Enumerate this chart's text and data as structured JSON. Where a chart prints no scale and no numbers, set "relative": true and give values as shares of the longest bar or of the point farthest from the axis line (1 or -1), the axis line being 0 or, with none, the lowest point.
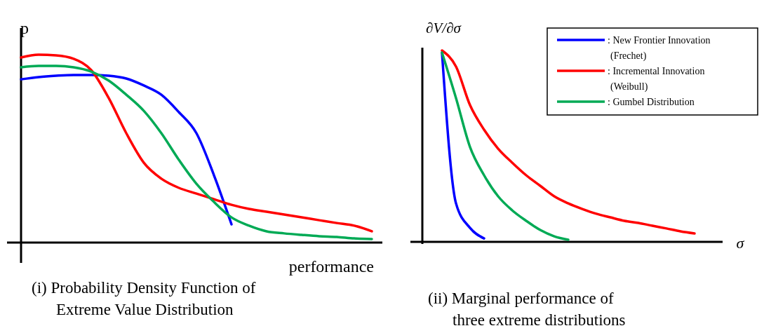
{
  "chart_data": [
    {
      "type": "line",
      "relative": true,
      "title": "(i) Probability Density Function of Extreme Value Distribution",
      "ylabel": "p",
      "xlabel": "performance",
      "legend": false,
      "marker": "none",
      "line_style": "solid",
      "categories": [
        null,
        null,
        null,
        null,
        null,
        null,
        null,
        null,
        null,
        null,
        null,
        null,
        null,
        null,
        null,
        null,
        null,
        null,
        null,
        null,
        null
      ],
      "series": [
        {
          "color": "#0000ff",
          "values": [
            0.869,
            0.881,
            0.888,
            0.892,
            0.892,
            0.888,
            0.873,
            0.836,
            0.787,
            0.694,
            0.582,
            0.358,
            0.097,
            null,
            null,
            null,
            null,
            null,
            null,
            null,
            null
          ]
        },
        {
          "color": "#ff0000",
          "values": [
            0.985,
            1,
            0.996,
            0.978,
            0.918,
            0.769,
            0.582,
            0.425,
            0.34,
            0.291,
            0.261,
            0.231,
            0.201,
            0.179,
            0.164,
            0.149,
            0.134,
            0.119,
            0.104,
            0.09,
            0.06
          ]
        },
        {
          "color": "#00aa55",
          "values": [
            0.933,
            0.94,
            0.94,
            0.933,
            0.91,
            0.862,
            0.787,
            0.701,
            0.582,
            0.44,
            0.313,
            0.216,
            0.134,
            0.09,
            0.06,
            0.049,
            0.041,
            0.034,
            0.03,
            0.022,
            0.019
          ]
        }
      ]
    },
    {
      "type": "line",
      "relative": true,
      "title": "(ii) Marginal performance of three extreme distributions",
      "ylabel": "∂V/∂σ",
      "xlabel": "σ",
      "legend": "top right",
      "marker": "none",
      "line_style": "solid",
      "categories": [
        null,
        null,
        null,
        null,
        null,
        null,
        null,
        null,
        null,
        null,
        null,
        null,
        null,
        null,
        null,
        null,
        null,
        null,
        null,
        null
      ],
      "series": [
        {
          "name": ": New Frontier Innovation (Frechet)",
          "color": "#0000ff",
          "values": [
            0.989,
            0.201,
            0.073,
            0.018,
            null,
            null,
            null,
            null,
            null,
            null,
            null,
            null,
            null,
            null,
            null,
            null,
            null,
            null,
            null,
            null
          ]
        },
        {
          "name": ": Incremental Innovation (Weibull)",
          "color": "#ff0000",
          "values": [
            1,
            0.916,
            0.714,
            0.586,
            0.487,
            0.414,
            0.348,
            0.293,
            0.238,
            0.201,
            0.172,
            0.147,
            0.128,
            0.11,
            0.099,
            0.084,
            0.07,
            0.055,
            0.044,
            null
          ]
        },
        {
          "name": ": Gumbel Distribution",
          "color": "#00aa55",
          "values": [
            0.989,
            0.751,
            0.495,
            0.348,
            0.238,
            0.165,
            0.11,
            0.062,
            0.029,
            0.011,
            null,
            null,
            null,
            null,
            null,
            null,
            null,
            null,
            null,
            null
          ]
        }
      ]
    }
  ]
}
